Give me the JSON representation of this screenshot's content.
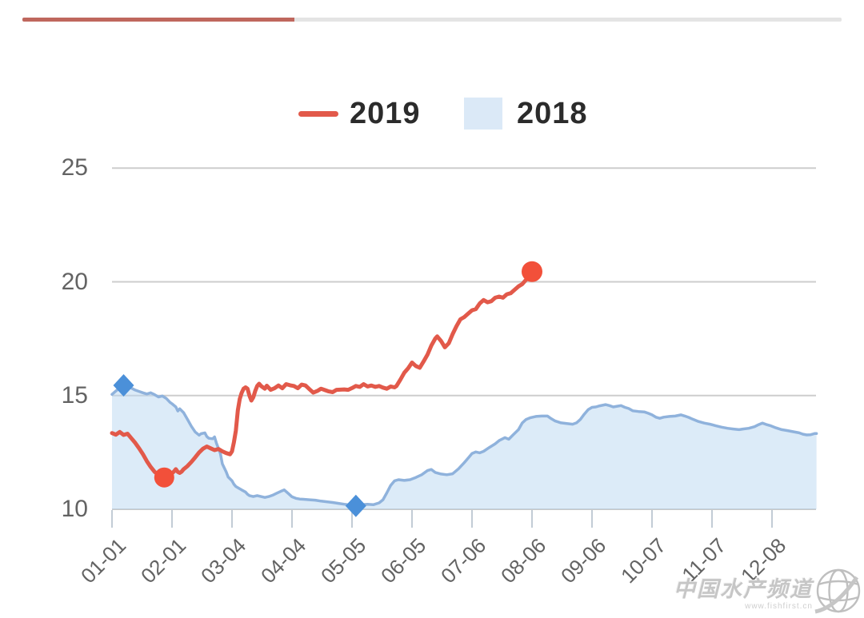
{
  "top_divider": {
    "red_segment": true,
    "gray_segment": true
  },
  "legend": {
    "position": "top-center",
    "items": [
      {
        "label": "2019",
        "type": "line",
        "color": "#e2594a"
      },
      {
        "label": "2018",
        "type": "area",
        "color": "#dbe9f7"
      }
    ]
  },
  "watermark": {
    "title": "中国水产频道",
    "url": "www.fishfirst.cn",
    "icon": "globe-icon"
  },
  "colors": {
    "accent_red": "#e2594a",
    "marker_red": "#f2503a",
    "line_blue": "#8fb2dc",
    "marker_blue": "#4b90d9",
    "area_blue_fill_rgba": "rgba(185,215,241,0.5)",
    "legend_swatch_blue": "#dbe9f7",
    "grid": "#cdcdcd",
    "axis_line": "#c9c9c9",
    "tick": "#c2ccd6",
    "axis_label": "#636363",
    "legend_text": "#2b2b2b",
    "top_bar_red": "#bf675d",
    "top_bar_gray": "#e4e4e4"
  },
  "chart_data": {
    "type": "line",
    "title": "",
    "xlabel": "",
    "ylabel": "",
    "ylim": [
      10,
      25
    ],
    "yticks": [
      25,
      20,
      15,
      10
    ],
    "grid": "horizontal",
    "legend_position": "top",
    "x_axis": {
      "unit": "day-of-year",
      "xlim": [
        1,
        365
      ],
      "tick_interval_days": 31
    },
    "xtick_labels": [
      "01-01",
      "02-01",
      "03-04",
      "04-04",
      "05-05",
      "06-05",
      "07-06",
      "08-06",
      "09-06",
      "10-07",
      "11-07",
      "12-08"
    ],
    "series": [
      {
        "name": "2019",
        "type": "line",
        "color": "#e2594a",
        "markers": [
          {
            "kind": "min",
            "day": 28,
            "value": 11.4,
            "shape": "circle"
          },
          {
            "kind": "latest",
            "day": 218,
            "value": 20.45,
            "shape": "circle"
          }
        ],
        "points": [
          [
            1,
            13.35
          ],
          [
            3,
            13.28
          ],
          [
            5,
            13.4
          ],
          [
            7,
            13.27
          ],
          [
            9,
            13.32
          ],
          [
            11,
            13.12
          ],
          [
            13,
            12.92
          ],
          [
            15,
            12.68
          ],
          [
            17,
            12.42
          ],
          [
            19,
            12.12
          ],
          [
            21,
            11.86
          ],
          [
            23,
            11.65
          ],
          [
            25,
            11.52
          ],
          [
            27,
            11.44
          ],
          [
            28,
            11.4
          ],
          [
            30,
            11.5
          ],
          [
            32,
            11.58
          ],
          [
            33,
            11.66
          ],
          [
            34,
            11.76
          ],
          [
            35,
            11.64
          ],
          [
            36,
            11.6
          ],
          [
            37,
            11.66
          ],
          [
            38,
            11.76
          ],
          [
            40,
            11.9
          ],
          [
            42,
            12.08
          ],
          [
            44,
            12.28
          ],
          [
            46,
            12.5
          ],
          [
            48,
            12.66
          ],
          [
            50,
            12.76
          ],
          [
            52,
            12.68
          ],
          [
            54,
            12.6
          ],
          [
            56,
            12.65
          ],
          [
            58,
            12.55
          ],
          [
            60,
            12.47
          ],
          [
            62,
            12.42
          ],
          [
            63,
            12.55
          ],
          [
            64,
            12.95
          ],
          [
            65,
            13.45
          ],
          [
            66,
            14.35
          ],
          [
            67,
            14.85
          ],
          [
            68,
            15.12
          ],
          [
            69,
            15.3
          ],
          [
            70,
            15.36
          ],
          [
            71,
            15.3
          ],
          [
            72,
            15.0
          ],
          [
            73,
            14.78
          ],
          [
            74,
            14.92
          ],
          [
            75,
            15.2
          ],
          [
            76,
            15.42
          ],
          [
            77,
            15.52
          ],
          [
            78,
            15.42
          ],
          [
            80,
            15.3
          ],
          [
            81,
            15.43
          ],
          [
            83,
            15.25
          ],
          [
            85,
            15.32
          ],
          [
            87,
            15.44
          ],
          [
            89,
            15.32
          ],
          [
            91,
            15.5
          ],
          [
            93,
            15.45
          ],
          [
            95,
            15.42
          ],
          [
            97,
            15.32
          ],
          [
            99,
            15.48
          ],
          [
            101,
            15.44
          ],
          [
            103,
            15.28
          ],
          [
            105,
            15.13
          ],
          [
            107,
            15.2
          ],
          [
            109,
            15.3
          ],
          [
            111,
            15.24
          ],
          [
            113,
            15.18
          ],
          [
            115,
            15.15
          ],
          [
            117,
            15.25
          ],
          [
            119,
            15.26
          ],
          [
            121,
            15.27
          ],
          [
            123,
            15.25
          ],
          [
            125,
            15.33
          ],
          [
            127,
            15.42
          ],
          [
            129,
            15.38
          ],
          [
            131,
            15.5
          ],
          [
            133,
            15.4
          ],
          [
            135,
            15.44
          ],
          [
            137,
            15.38
          ],
          [
            139,
            15.42
          ],
          [
            141,
            15.35
          ],
          [
            143,
            15.3
          ],
          [
            145,
            15.4
          ],
          [
            147,
            15.36
          ],
          [
            148,
            15.42
          ],
          [
            150,
            15.7
          ],
          [
            152,
            16.0
          ],
          [
            154,
            16.2
          ],
          [
            156,
            16.45
          ],
          [
            158,
            16.3
          ],
          [
            160,
            16.22
          ],
          [
            162,
            16.5
          ],
          [
            164,
            16.8
          ],
          [
            166,
            17.2
          ],
          [
            168,
            17.5
          ],
          [
            169,
            17.6
          ],
          [
            171,
            17.4
          ],
          [
            173,
            17.12
          ],
          [
            175,
            17.3
          ],
          [
            177,
            17.7
          ],
          [
            179,
            18.05
          ],
          [
            181,
            18.35
          ],
          [
            183,
            18.45
          ],
          [
            185,
            18.6
          ],
          [
            187,
            18.75
          ],
          [
            189,
            18.8
          ],
          [
            191,
            19.05
          ],
          [
            193,
            19.2
          ],
          [
            195,
            19.1
          ],
          [
            197,
            19.15
          ],
          [
            199,
            19.3
          ],
          [
            201,
            19.35
          ],
          [
            203,
            19.3
          ],
          [
            205,
            19.45
          ],
          [
            207,
            19.5
          ],
          [
            209,
            19.65
          ],
          [
            211,
            19.8
          ],
          [
            213,
            19.9
          ],
          [
            215,
            20.1
          ],
          [
            217,
            20.35
          ],
          [
            218,
            20.45
          ]
        ]
      },
      {
        "name": "2018",
        "type": "area",
        "line_color": "#8fb2dc",
        "fill_color": "rgba(185,215,241,0.5)",
        "markers": [
          {
            "kind": "max",
            "day": 7,
            "value": 15.45,
            "shape": "diamond"
          },
          {
            "kind": "min",
            "day": 127,
            "value": 10.15,
            "shape": "diamond"
          }
        ],
        "points": [
          [
            1,
            15.05
          ],
          [
            3,
            15.2
          ],
          [
            5,
            15.34
          ],
          [
            7,
            15.45
          ],
          [
            9,
            15.4
          ],
          [
            11,
            15.33
          ],
          [
            13,
            15.24
          ],
          [
            15,
            15.18
          ],
          [
            17,
            15.12
          ],
          [
            19,
            15.07
          ],
          [
            21,
            15.12
          ],
          [
            23,
            15.04
          ],
          [
            25,
            14.94
          ],
          [
            27,
            14.98
          ],
          [
            29,
            14.88
          ],
          [
            31,
            14.7
          ],
          [
            32,
            14.64
          ],
          [
            34,
            14.5
          ],
          [
            35,
            14.32
          ],
          [
            36,
            14.42
          ],
          [
            38,
            14.25
          ],
          [
            40,
            13.95
          ],
          [
            42,
            13.65
          ],
          [
            44,
            13.4
          ],
          [
            46,
            13.26
          ],
          [
            47,
            13.32
          ],
          [
            49,
            13.36
          ],
          [
            50,
            13.2
          ],
          [
            51,
            13.12
          ],
          [
            53,
            13.1
          ],
          [
            54,
            13.18
          ],
          [
            55,
            12.9
          ],
          [
            57,
            12.45
          ],
          [
            58,
            12.0
          ],
          [
            60,
            11.65
          ],
          [
            61,
            11.42
          ],
          [
            63,
            11.25
          ],
          [
            64,
            11.1
          ],
          [
            65,
            11.0
          ],
          [
            66,
            10.95
          ],
          [
            67,
            10.9
          ],
          [
            68,
            10.85
          ],
          [
            70,
            10.76
          ],
          [
            71,
            10.66
          ],
          [
            72,
            10.6
          ],
          [
            74,
            10.56
          ],
          [
            76,
            10.6
          ],
          [
            78,
            10.56
          ],
          [
            80,
            10.52
          ],
          [
            82,
            10.56
          ],
          [
            84,
            10.62
          ],
          [
            86,
            10.7
          ],
          [
            88,
            10.78
          ],
          [
            90,
            10.85
          ],
          [
            92,
            10.7
          ],
          [
            94,
            10.55
          ],
          [
            96,
            10.48
          ],
          [
            98,
            10.45
          ],
          [
            100,
            10.44
          ],
          [
            103,
            10.42
          ],
          [
            106,
            10.4
          ],
          [
            109,
            10.36
          ],
          [
            112,
            10.33
          ],
          [
            115,
            10.3
          ],
          [
            118,
            10.26
          ],
          [
            121,
            10.22
          ],
          [
            124,
            10.19
          ],
          [
            127,
            10.15
          ],
          [
            130,
            10.2
          ],
          [
            133,
            10.22
          ],
          [
            136,
            10.2
          ],
          [
            139,
            10.28
          ],
          [
            141,
            10.42
          ],
          [
            143,
            10.72
          ],
          [
            145,
            11.05
          ],
          [
            147,
            11.25
          ],
          [
            149,
            11.3
          ],
          [
            152,
            11.27
          ],
          [
            155,
            11.3
          ],
          [
            158,
            11.4
          ],
          [
            161,
            11.52
          ],
          [
            164,
            11.7
          ],
          [
            166,
            11.75
          ],
          [
            168,
            11.62
          ],
          [
            171,
            11.55
          ],
          [
            174,
            11.52
          ],
          [
            177,
            11.56
          ],
          [
            180,
            11.78
          ],
          [
            183,
            12.05
          ],
          [
            185,
            12.25
          ],
          [
            187,
            12.45
          ],
          [
            189,
            12.52
          ],
          [
            191,
            12.48
          ],
          [
            193,
            12.55
          ],
          [
            196,
            12.72
          ],
          [
            199,
            12.88
          ],
          [
            201,
            13.02
          ],
          [
            204,
            13.15
          ],
          [
            206,
            13.08
          ],
          [
            208,
            13.25
          ],
          [
            211,
            13.5
          ],
          [
            213,
            13.8
          ],
          [
            215,
            13.95
          ],
          [
            217,
            14.02
          ],
          [
            220,
            14.08
          ],
          [
            223,
            14.1
          ],
          [
            226,
            14.1
          ],
          [
            228,
            13.98
          ],
          [
            230,
            13.88
          ],
          [
            233,
            13.8
          ],
          [
            236,
            13.77
          ],
          [
            239,
            13.74
          ],
          [
            241,
            13.8
          ],
          [
            243,
            13.95
          ],
          [
            245,
            14.18
          ],
          [
            247,
            14.38
          ],
          [
            249,
            14.48
          ],
          [
            251,
            14.5
          ],
          [
            253,
            14.55
          ],
          [
            256,
            14.6
          ],
          [
            258,
            14.56
          ],
          [
            260,
            14.5
          ],
          [
            262,
            14.53
          ],
          [
            264,
            14.56
          ],
          [
            266,
            14.48
          ],
          [
            268,
            14.43
          ],
          [
            270,
            14.33
          ],
          [
            273,
            14.3
          ],
          [
            276,
            14.28
          ],
          [
            278,
            14.22
          ],
          [
            280,
            14.15
          ],
          [
            282,
            14.05
          ],
          [
            284,
            14.0
          ],
          [
            286,
            14.05
          ],
          [
            289,
            14.08
          ],
          [
            292,
            14.1
          ],
          [
            295,
            14.15
          ],
          [
            297,
            14.1
          ],
          [
            299,
            14.04
          ],
          [
            301,
            13.96
          ],
          [
            304,
            13.86
          ],
          [
            307,
            13.79
          ],
          [
            310,
            13.74
          ],
          [
            313,
            13.67
          ],
          [
            316,
            13.61
          ],
          [
            319,
            13.56
          ],
          [
            322,
            13.53
          ],
          [
            325,
            13.5
          ],
          [
            327,
            13.53
          ],
          [
            330,
            13.56
          ],
          [
            333,
            13.63
          ],
          [
            335,
            13.72
          ],
          [
            337,
            13.79
          ],
          [
            339,
            13.73
          ],
          [
            341,
            13.68
          ],
          [
            344,
            13.58
          ],
          [
            347,
            13.5
          ],
          [
            350,
            13.46
          ],
          [
            353,
            13.41
          ],
          [
            356,
            13.36
          ],
          [
            358,
            13.3
          ],
          [
            360,
            13.27
          ],
          [
            362,
            13.28
          ],
          [
            364,
            13.33
          ],
          [
            365,
            13.33
          ]
        ]
      }
    ]
  }
}
